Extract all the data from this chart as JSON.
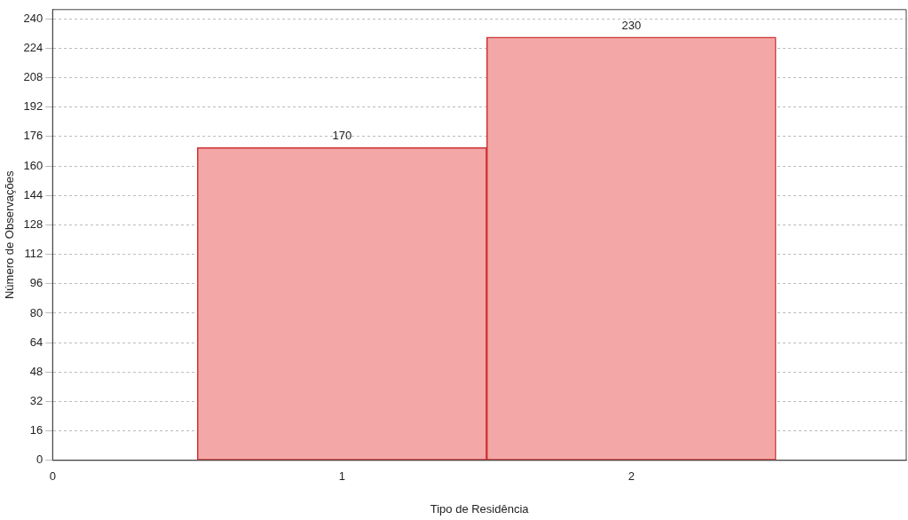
{
  "chart_data": {
    "type": "histogram",
    "xlabel": "Tipo de Residência",
    "ylabel": "Número de Observações",
    "bins": [
      0.5,
      1.5,
      2.5
    ],
    "values": [
      170,
      230
    ],
    "color": "#f4a7a7",
    "xlim": [
      0,
      2.95
    ],
    "xticks": [
      0,
      1,
      2
    ],
    "ylim": [
      0,
      245
    ],
    "yticks": [
      0,
      16,
      32,
      48,
      64,
      80,
      96,
      112,
      128,
      144,
      160,
      176,
      192,
      208,
      224,
      240
    ],
    "grid": "y",
    "data_labels": true
  }
}
